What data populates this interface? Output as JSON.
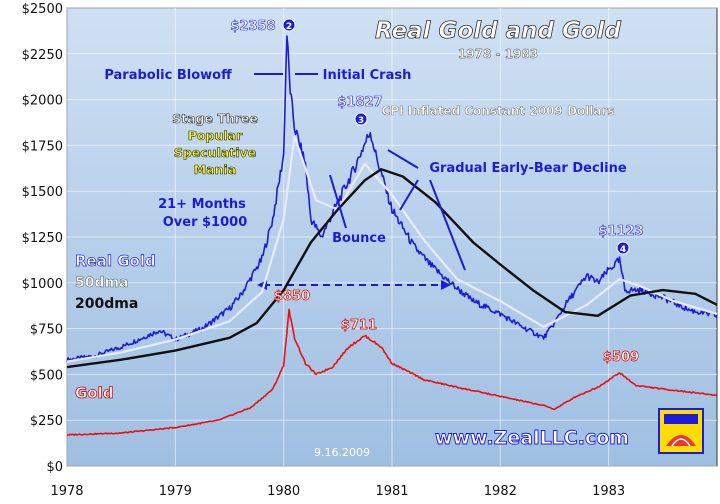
{
  "chart_data": {
    "type": "line",
    "title": "Real Gold and Gold",
    "subtitle": "1978 - 1983",
    "note": "CPI Inflated Constant 2009 Dollars",
    "y_unit": "USD",
    "ylim": [
      0,
      2500
    ],
    "y_ticks": [
      "$0",
      "$250",
      "$500",
      "$750",
      "$1000",
      "$1250",
      "$1500",
      "$1750",
      "$2000",
      "$2250",
      "$2500"
    ],
    "xlim": [
      1978,
      1984
    ],
    "x_ticks": [
      "1978",
      "1979",
      "1980",
      "1981",
      "1982",
      "1983"
    ],
    "series": [
      {
        "name": "Real Gold",
        "color": "#1c1cd6",
        "x": [
          1978.0,
          1978.25,
          1978.5,
          1978.7,
          1978.85,
          1979.0,
          1979.25,
          1979.5,
          1979.6,
          1979.7,
          1979.8,
          1979.9,
          1980.0,
          1980.03,
          1980.06,
          1980.1,
          1980.2,
          1980.25,
          1980.35,
          1980.45,
          1980.55,
          1980.65,
          1980.72,
          1980.8,
          1980.85,
          1980.9,
          1981.0,
          1981.1,
          1981.2,
          1981.35,
          1981.5,
          1981.6,
          1981.75,
          1982.0,
          1982.2,
          1982.4,
          1982.5,
          1982.6,
          1982.7,
          1982.8,
          1982.9,
          1983.0,
          1983.1,
          1983.15,
          1983.3,
          1983.5,
          1983.75,
          1984.0
        ],
        "values": [
          580,
          600,
          650,
          700,
          740,
          690,
          750,
          860,
          930,
          1030,
          1130,
          1350,
          1700,
          2358,
          2050,
          1850,
          1650,
          1350,
          1250,
          1380,
          1500,
          1620,
          1720,
          1827,
          1700,
          1600,
          1400,
          1300,
          1200,
          1100,
          1020,
          970,
          900,
          830,
          760,
          700,
          780,
          880,
          960,
          1040,
          1000,
          1070,
          1123,
          960,
          960,
          920,
          850,
          820
        ]
      },
      {
        "name": "50dma",
        "color": "#e6ecff",
        "x": [
          1978.0,
          1978.5,
          1979.0,
          1979.5,
          1979.8,
          1980.0,
          1980.1,
          1980.3,
          1980.5,
          1980.75,
          1981.0,
          1981.3,
          1981.6,
          1982.0,
          1982.4,
          1982.8,
          1983.1,
          1983.3,
          1983.6,
          1984.0
        ],
        "values": [
          570,
          620,
          690,
          790,
          950,
          1350,
          1800,
          1450,
          1400,
          1650,
          1480,
          1230,
          1020,
          900,
          760,
          880,
          1020,
          980,
          900,
          830
        ]
      },
      {
        "name": "200dma",
        "color": "#111111",
        "x": [
          1978.0,
          1978.5,
          1979.0,
          1979.5,
          1979.75,
          1980.0,
          1980.25,
          1980.5,
          1980.75,
          1980.9,
          1981.1,
          1981.4,
          1981.75,
          1982.0,
          1982.3,
          1982.6,
          1982.9,
          1983.2,
          1983.5,
          1983.8,
          1984.0
        ],
        "values": [
          540,
          580,
          630,
          700,
          780,
          960,
          1220,
          1400,
          1560,
          1620,
          1580,
          1440,
          1220,
          1100,
          960,
          840,
          820,
          930,
          960,
          940,
          880
        ]
      },
      {
        "name": "Gold",
        "color": "#ea1010",
        "x": [
          1978.0,
          1978.5,
          1979.0,
          1979.4,
          1979.7,
          1979.9,
          1980.0,
          1980.05,
          1980.1,
          1980.2,
          1980.3,
          1980.45,
          1980.6,
          1980.75,
          1980.9,
          1981.0,
          1981.3,
          1981.6,
          1982.0,
          1982.4,
          1982.5,
          1982.7,
          1982.9,
          1983.1,
          1983.25,
          1983.5,
          1983.8,
          1984.0
        ],
        "values": [
          170,
          180,
          210,
          250,
          320,
          420,
          550,
          850,
          700,
          560,
          500,
          540,
          650,
          711,
          650,
          560,
          470,
          430,
          380,
          330,
          310,
          380,
          430,
          509,
          440,
          420,
          400,
          385
        ]
      }
    ],
    "annotations": [
      {
        "text": "$2358",
        "badge": "2"
      },
      {
        "text": "Parabolic Blowoff"
      },
      {
        "text": "Initial Crash"
      },
      {
        "text": "$1827",
        "badge": "3"
      },
      {
        "text": "Stage Three"
      },
      {
        "text": "Popular"
      },
      {
        "text": "Speculative"
      },
      {
        "text": "Mania"
      },
      {
        "text": "Gradual Early-Bear Decline"
      },
      {
        "text": "21+ Months"
      },
      {
        "text": "Over $1000"
      },
      {
        "text": "Bounce"
      },
      {
        "text": "$1123",
        "badge": "4"
      },
      {
        "text": "$850"
      },
      {
        "text": "$711"
      },
      {
        "text": "$509"
      }
    ],
    "legend": [
      "Real Gold",
      "50dma",
      "200dma",
      "Gold"
    ],
    "watermark_url": "www.ZealLLC.com",
    "date_stamp": "9.16.2009"
  }
}
